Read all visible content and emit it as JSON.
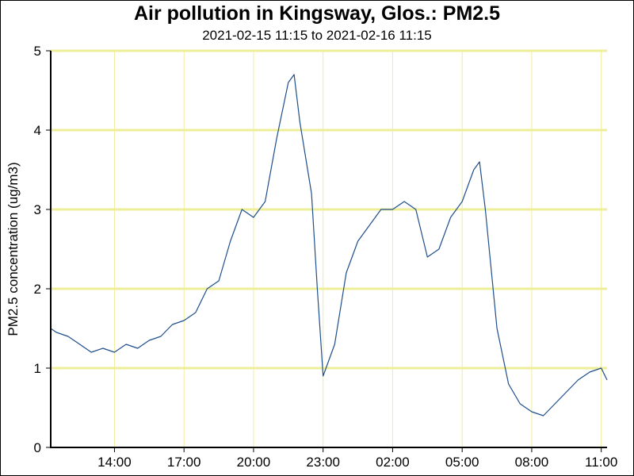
{
  "chart_data": {
    "type": "line",
    "title": "Air pollution in Kingsway, Glos.: PM2.5",
    "subtitle": "2021-02-15 11:15 to 2021-02-16 11:15",
    "xlabel": "",
    "ylabel": "PM2.5 concentration (ug/m3)",
    "ylim": [
      0,
      5
    ],
    "xlim": [
      "2021-02-15 11:15",
      "2021-02-16 11:15"
    ],
    "yticks": [
      "0",
      "1",
      "2",
      "3",
      "4",
      "5"
    ],
    "xticks": [
      {
        "label": "14:00",
        "time": "2021-02-15 14:00"
      },
      {
        "label": "17:00",
        "time": "2021-02-15 17:00"
      },
      {
        "label": "20:00",
        "time": "2021-02-15 20:00"
      },
      {
        "label": "23:00",
        "time": "2021-02-15 23:00"
      },
      {
        "label": "02:00",
        "time": "2021-02-16 02:00"
      },
      {
        "label": "05:00",
        "time": "2021-02-16 05:00"
      },
      {
        "label": "08:00",
        "time": "2021-02-16 08:00"
      },
      {
        "label": "11:00",
        "time": "2021-02-16 11:00"
      }
    ],
    "grid": true,
    "colors": {
      "line": "#1f4e8c",
      "grid": "#eeee99",
      "axis": "#000000"
    },
    "series": [
      {
        "x": [
          "2021-02-15 11:15",
          "2021-02-15 11:30",
          "2021-02-15 12:00",
          "2021-02-15 12:30",
          "2021-02-15 13:00",
          "2021-02-15 13:30",
          "2021-02-15 14:00",
          "2021-02-15 14:30",
          "2021-02-15 15:00",
          "2021-02-15 15:30",
          "2021-02-15 16:00",
          "2021-02-15 16:30",
          "2021-02-15 17:00",
          "2021-02-15 17:30",
          "2021-02-15 18:00",
          "2021-02-15 18:30",
          "2021-02-15 19:00",
          "2021-02-15 19:30",
          "2021-02-15 20:00",
          "2021-02-15 20:30",
          "2021-02-15 21:00",
          "2021-02-15 21:30",
          "2021-02-15 21:45",
          "2021-02-15 22:00",
          "2021-02-15 22:30",
          "2021-02-15 22:45",
          "2021-02-15 23:00",
          "2021-02-15 23:30",
          "2021-02-16 00:00",
          "2021-02-16 00:30",
          "2021-02-16 01:00",
          "2021-02-16 01:30",
          "2021-02-16 02:00",
          "2021-02-16 02:30",
          "2021-02-16 03:00",
          "2021-02-16 03:30",
          "2021-02-16 04:00",
          "2021-02-16 04:30",
          "2021-02-16 05:00",
          "2021-02-16 05:30",
          "2021-02-16 05:45",
          "2021-02-16 06:00",
          "2021-02-16 06:30",
          "2021-02-16 07:00",
          "2021-02-16 07:30",
          "2021-02-16 08:00",
          "2021-02-16 08:30",
          "2021-02-16 09:00",
          "2021-02-16 09:30",
          "2021-02-16 10:00",
          "2021-02-16 10:30",
          "2021-02-16 11:00",
          "2021-02-16 11:15"
        ],
        "values": [
          1.5,
          1.45,
          1.4,
          1.3,
          1.2,
          1.25,
          1.2,
          1.3,
          1.25,
          1.35,
          1.4,
          1.55,
          1.6,
          1.7,
          2.0,
          2.1,
          2.6,
          3.0,
          2.9,
          3.1,
          3.9,
          4.6,
          4.7,
          4.1,
          3.2,
          2.0,
          0.9,
          1.3,
          2.2,
          2.6,
          2.8,
          3.0,
          3.0,
          3.1,
          3.0,
          2.4,
          2.5,
          2.9,
          3.1,
          3.5,
          3.6,
          3.0,
          1.5,
          0.8,
          0.55,
          0.45,
          0.4,
          0.55,
          0.7,
          0.85,
          0.95,
          1.0,
          0.85
        ]
      }
    ]
  }
}
